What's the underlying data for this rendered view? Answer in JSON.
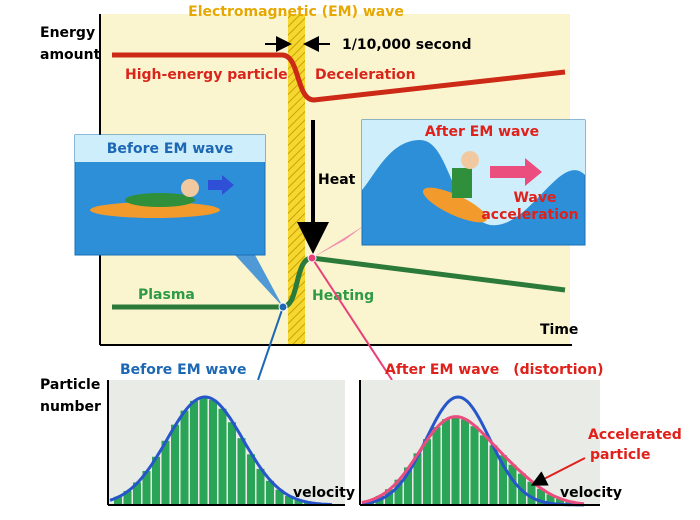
{
  "header": {
    "title": "Electromagnetic (EM) wave"
  },
  "energy_plot": {
    "y_axis_label": [
      "Energy",
      "amount"
    ],
    "x_axis_label": "Time",
    "duration": "1/10,000 second",
    "labels": {
      "high_energy": "High-energy particle",
      "deceleration": "Deceleration",
      "heat": "Heat",
      "plasma": "Plasma",
      "heating": "Heating"
    }
  },
  "panels": {
    "before": {
      "title": "Before EM wave"
    },
    "after": {
      "title": "After EM wave",
      "note": [
        "Wave",
        "acceleration"
      ]
    }
  },
  "histograms": {
    "y_axis_label": [
      "Particle",
      "number"
    ],
    "before": {
      "title": "Before EM wave",
      "x_label": "velocity"
    },
    "after": {
      "title": "After EM wave　(distortion)",
      "x_label": "velocity",
      "note": [
        "Accelerated",
        "particle"
      ]
    }
  }
}
